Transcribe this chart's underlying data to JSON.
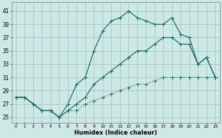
{
  "xlabel": "Humidex (Indice chaleur)",
  "background_color": "#cde8e5",
  "grid_color": "#a0c8c4",
  "line_color": "#1a6b5a",
  "x_ticks": [
    0,
    1,
    2,
    3,
    4,
    5,
    6,
    7,
    8,
    9,
    10,
    11,
    12,
    13,
    14,
    15,
    16,
    17,
    18,
    19,
    20,
    21,
    22,
    23
  ],
  "x_tick_labels": [
    "0",
    "1",
    "2",
    "3",
    "4",
    "5",
    "6",
    "7",
    "8",
    "9",
    "10",
    "11",
    "12",
    "13",
    "14",
    "15",
    "16",
    "17",
    "18",
    "19",
    "20",
    "21",
    "22",
    "23"
  ],
  "y_ticks": [
    25,
    27,
    29,
    31,
    33,
    35,
    37,
    39,
    41
  ],
  "ylim": [
    24.2,
    42.3
  ],
  "xlim": [
    -0.5,
    23.5
  ],
  "line1_x": [
    0,
    1,
    2,
    3,
    4,
    5,
    6,
    7,
    8,
    9,
    10,
    11,
    12,
    13,
    14,
    15,
    16,
    17,
    18,
    19,
    20,
    21,
    22,
    23
  ],
  "line1_y": [
    28,
    28,
    27,
    26,
    26,
    25,
    27,
    30,
    31,
    35,
    38,
    39.5,
    40,
    41,
    40,
    39.5,
    39,
    39,
    40,
    37.5,
    37,
    33,
    34,
    31
  ],
  "line2_x": [
    0,
    1,
    2,
    3,
    4,
    5,
    6,
    7,
    8,
    9,
    10,
    11,
    12,
    13,
    14,
    15,
    16,
    17,
    18,
    19,
    20,
    21,
    22,
    23
  ],
  "line2_y": [
    28,
    28,
    27,
    26,
    26,
    25,
    26,
    27,
    28,
    30,
    31,
    32,
    33,
    34,
    35,
    35,
    36,
    37,
    37,
    36,
    36,
    33,
    34,
    31
  ],
  "line3_x": [
    0,
    1,
    2,
    3,
    4,
    5,
    6,
    7,
    8,
    9,
    10,
    11,
    12,
    13,
    14,
    15,
    16,
    17,
    18,
    19,
    20,
    21,
    22,
    23
  ],
  "line3_y": [
    28,
    28,
    27,
    26,
    26,
    25,
    26,
    26,
    27,
    27.5,
    28,
    28.5,
    29,
    29.5,
    30,
    30,
    30.5,
    31,
    31,
    31,
    31,
    31,
    31,
    31
  ]
}
